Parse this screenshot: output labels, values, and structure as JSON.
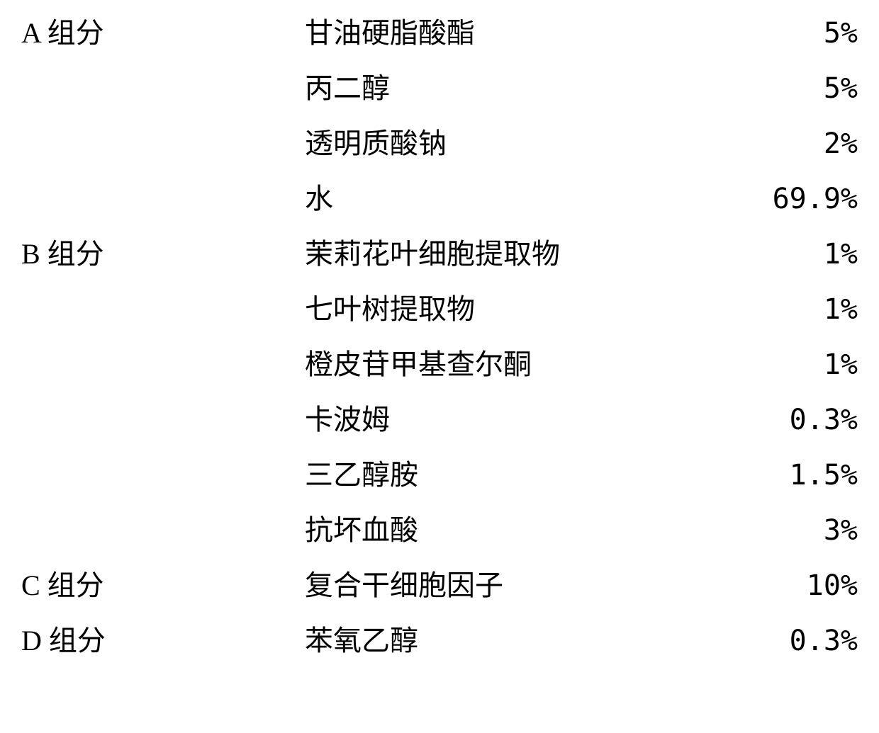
{
  "table": {
    "type": "table",
    "columns": [
      "group",
      "ingredient",
      "percent"
    ],
    "font_size_pt": 30,
    "text_color": "#000000",
    "background_color": "#ffffff",
    "rows": [
      {
        "group": "A 组分",
        "ingredient": "甘油硬脂酸酯",
        "percent": "5%"
      },
      {
        "group": "",
        "ingredient": "丙二醇",
        "percent": "5%"
      },
      {
        "group": "",
        "ingredient": "透明质酸钠",
        "percent": "2%"
      },
      {
        "group": "",
        "ingredient": "水",
        "percent": "69.9%"
      },
      {
        "group": "B 组分",
        "ingredient": "茉莉花叶细胞提取物",
        "percent": "1%"
      },
      {
        "group": "",
        "ingredient": "七叶树提取物",
        "percent": "1%"
      },
      {
        "group": "",
        "ingredient": "橙皮苷甲基查尔酮",
        "percent": "1%"
      },
      {
        "group": "",
        "ingredient": "卡波姆",
        "percent": "0.3%"
      },
      {
        "group": "",
        "ingredient": "三乙醇胺",
        "percent": "1.5%"
      },
      {
        "group": "",
        "ingredient": "抗坏血酸",
        "percent": "3%"
      },
      {
        "group": "C 组分",
        "ingredient": "复合干细胞因子",
        "percent": "10%"
      },
      {
        "group": "D 组分",
        "ingredient": "苯氧乙醇",
        "percent": "0.3%"
      }
    ]
  }
}
